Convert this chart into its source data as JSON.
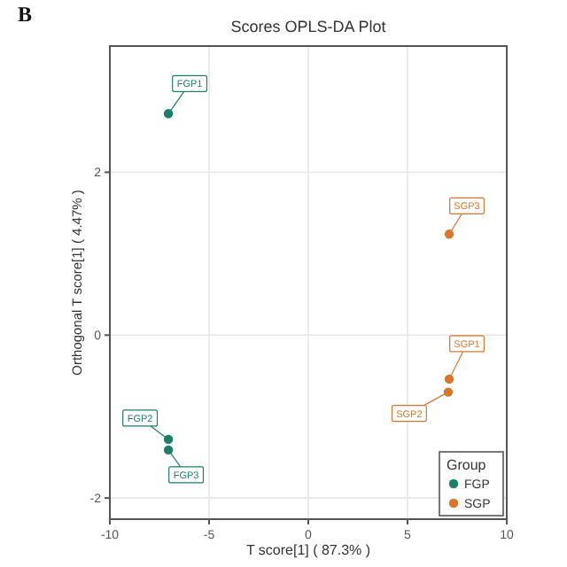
{
  "chart_data": {
    "type": "scatter",
    "title": "Scores OPLS-DA Plot",
    "xlabel": "T score[1] ( 87.3% )",
    "ylabel": "Orthogonal T score[1] ( 4.47% )",
    "legend_title": "Group",
    "series": [
      {
        "name": "FGP",
        "color": "#1b7f6a",
        "x": [
          -7.05,
          -7.05,
          -7.05
        ],
        "values": [
          2.72,
          -1.28,
          -1.41
        ]
      },
      {
        "name": "SGP",
        "color": "#d8762c",
        "x": [
          7.1,
          7.05,
          7.1
        ],
        "values": [
          -0.54,
          -0.7,
          1.24
        ]
      }
    ],
    "annotations": [
      "B",
      {
        "text": "FGP1",
        "x": -7.05,
        "y": 2.72
      },
      {
        "text": "FGP2",
        "x": -7.05,
        "y": -1.28
      },
      {
        "text": "FGP3",
        "x": -7.05,
        "y": -1.41
      },
      {
        "text": "SGP1",
        "x": 7.1,
        "y": -0.54
      },
      {
        "text": "SGP2",
        "x": 7.05,
        "y": -0.7
      },
      {
        "text": "SGP3",
        "x": 7.1,
        "y": 1.24
      }
    ],
    "xlim": [
      -10,
      10
    ],
    "xticks": [
      -10,
      -5,
      0,
      5,
      10
    ],
    "ylim": [
      -2.26,
      3.55
    ],
    "yticks": [
      -2,
      0,
      2
    ],
    "grid": true,
    "legend": "bottom right",
    "marker": "circle"
  }
}
